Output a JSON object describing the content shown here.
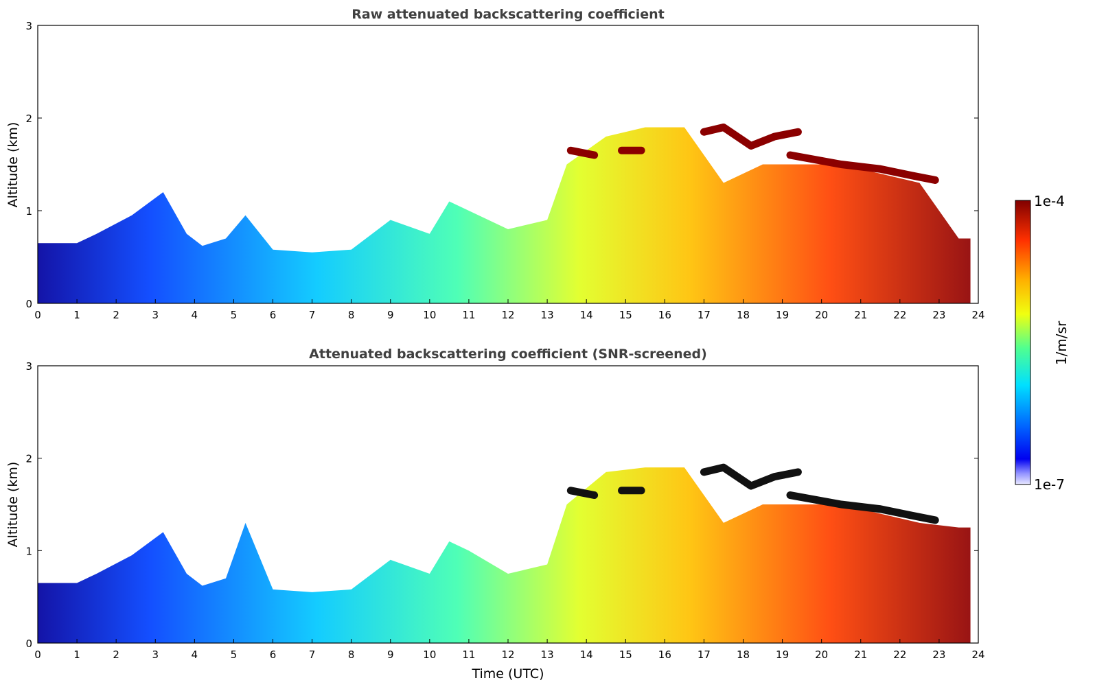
{
  "figure": {
    "colorbar": {
      "label": "1/m/sr",
      "max_label": "1e-4",
      "min_label": "1e-7",
      "vmin": 1e-07,
      "vmax": 0.0001,
      "scale": "log",
      "colormap": "jet"
    }
  },
  "chart_data": [
    {
      "type": "heatmap",
      "title": "Raw attenuated backscattering coefficient",
      "xlabel": "",
      "ylabel": "Altitude (km)",
      "xlim": [
        0,
        24
      ],
      "ylim": [
        0,
        3
      ],
      "xticks": [
        "0",
        "1",
        "2",
        "3",
        "4",
        "5",
        "6",
        "7",
        "8",
        "9",
        "10",
        "11",
        "12",
        "13",
        "14",
        "15",
        "16",
        "17",
        "18",
        "19",
        "20",
        "21",
        "22",
        "23",
        "24"
      ],
      "yticks": [
        "0",
        "1",
        "2",
        "3"
      ],
      "data_extent_hours": [
        0,
        23.8
      ],
      "boundary_layer_top_km": {
        "x": [
          0,
          1,
          1.5,
          2.4,
          3.2,
          3.8,
          4.2,
          4.8,
          5.3,
          6,
          7,
          8,
          9,
          10,
          10.5,
          11,
          12,
          13,
          13.5,
          14.5,
          15.5,
          16.5,
          17.5,
          18.5,
          19.5,
          20.5,
          21.5,
          22.5,
          23.5
        ],
        "y": [
          0.65,
          0.65,
          0.75,
          0.95,
          1.2,
          0.75,
          0.62,
          0.7,
          0.95,
          0.58,
          0.55,
          0.58,
          0.9,
          0.75,
          1.1,
          1.0,
          0.8,
          0.9,
          1.5,
          1.8,
          1.9,
          1.9,
          1.3,
          1.5,
          1.5,
          1.5,
          1.4,
          1.3,
          0.7
        ]
      },
      "cloud_layers": [
        {
          "x": [
            17,
            17.5,
            18.2,
            18.8,
            19.4
          ],
          "y": [
            1.85,
            1.9,
            1.7,
            1.8,
            1.85
          ]
        },
        {
          "x": [
            19.2,
            20.5,
            21.5,
            22.3,
            22.9
          ],
          "y": [
            1.6,
            1.5,
            1.45,
            1.38,
            1.33
          ]
        },
        {
          "x": [
            13.6,
            14.2
          ],
          "y": [
            1.65,
            1.6
          ]
        },
        {
          "x": [
            14.9,
            15.4
          ],
          "y": [
            1.65,
            1.65
          ]
        }
      ]
    },
    {
      "type": "heatmap",
      "title": "Attenuated backscattering coefficient (SNR-screened)",
      "xlabel": "Time (UTC)",
      "ylabel": "Altitude (km)",
      "xlim": [
        0,
        24
      ],
      "ylim": [
        0,
        3
      ],
      "xticks": [
        "0",
        "1",
        "2",
        "3",
        "4",
        "5",
        "6",
        "7",
        "8",
        "9",
        "10",
        "11",
        "12",
        "13",
        "14",
        "15",
        "16",
        "17",
        "18",
        "19",
        "20",
        "21",
        "22",
        "23",
        "24"
      ],
      "yticks": [
        "0",
        "1",
        "2",
        "3"
      ],
      "data_extent_hours": [
        0,
        23.8
      ],
      "boundary_layer_top_km": {
        "x": [
          0,
          1,
          1.5,
          2.4,
          3.2,
          3.8,
          4.2,
          4.8,
          5.3,
          6,
          7,
          8,
          9,
          10,
          10.5,
          11,
          12,
          13,
          13.5,
          14.5,
          15.5,
          16.5,
          17.5,
          18.5,
          19.5,
          20.5,
          21.5,
          22.5,
          23.5
        ],
        "y": [
          0.65,
          0.65,
          0.75,
          0.95,
          1.2,
          0.75,
          0.62,
          0.7,
          1.3,
          0.58,
          0.55,
          0.58,
          0.9,
          0.75,
          1.1,
          1.0,
          0.75,
          0.85,
          1.5,
          1.85,
          1.9,
          1.9,
          1.3,
          1.5,
          1.5,
          1.5,
          1.4,
          1.3,
          1.25
        ]
      },
      "cloud_layers": [
        {
          "x": [
            17,
            17.5,
            18.2,
            18.8,
            19.4
          ],
          "y": [
            1.85,
            1.9,
            1.7,
            1.8,
            1.85
          ]
        },
        {
          "x": [
            19.2,
            20.5,
            21.5,
            22.3,
            22.9
          ],
          "y": [
            1.6,
            1.5,
            1.45,
            1.38,
            1.33
          ]
        },
        {
          "x": [
            13.6,
            14.2
          ],
          "y": [
            1.65,
            1.6
          ]
        },
        {
          "x": [
            14.9,
            15.4
          ],
          "y": [
            1.65,
            1.65
          ]
        }
      ]
    }
  ]
}
